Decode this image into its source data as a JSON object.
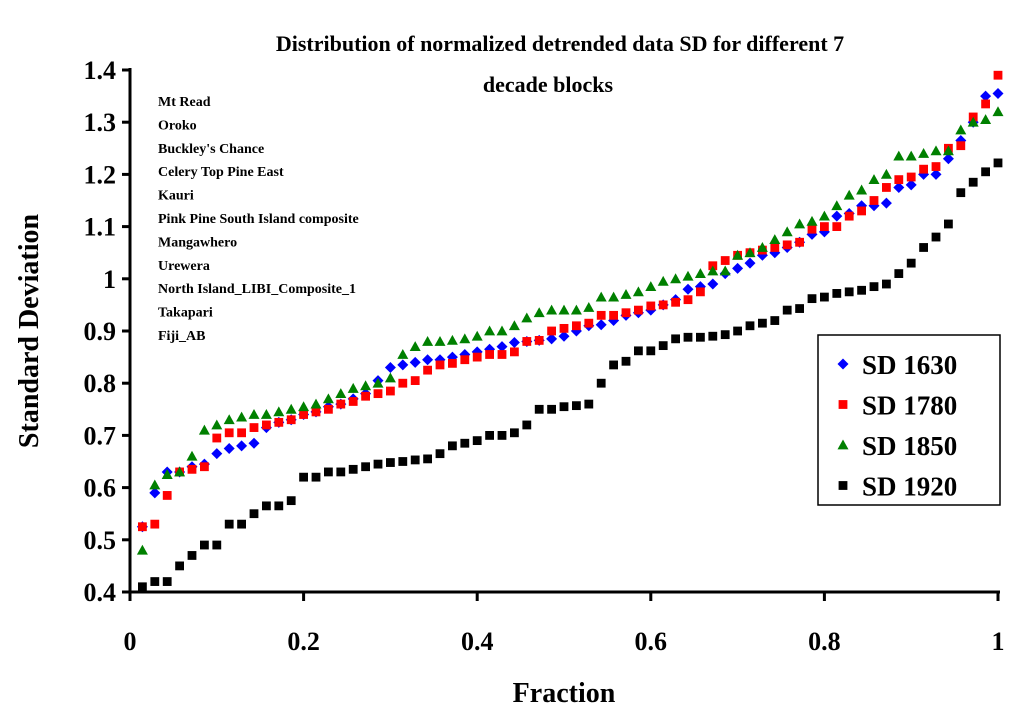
{
  "chart_data": {
    "type": "scatter",
    "title": "Distribution of normalized detrended data SD for different 7 decade blocks",
    "title_lines": [
      "Distribution of normalized detrended data SD for different 7",
      "decade blocks"
    ],
    "xlabel": "Fraction",
    "ylabel": "Standard Deviation",
    "xlim": [
      0,
      1
    ],
    "ylim": [
      0.4,
      1.4
    ],
    "xticks": [
      "0",
      "0.2",
      "0.4",
      "0.6",
      "0.8",
      "1"
    ],
    "yticks": [
      "0.4",
      "0.5",
      "0.6",
      "0.7",
      "0.8",
      "0.9",
      "1",
      "1.1",
      "1.2",
      "1.3",
      "1.4"
    ],
    "grid": false,
    "legend_position": "right",
    "annotations": [
      "Mt Read",
      "Oroko",
      "Buckley's Chance",
      "Celery Top Pine East",
      "Kauri",
      "Pink Pine South Island composite",
      "Mangawhero",
      "Urewera",
      "North Island_LIBI_Composite_1",
      "Takapari",
      "Fiji_AB"
    ],
    "series": [
      {
        "name": "SD 1630",
        "marker": "diamond",
        "color": "#0000ff",
        "values": [
          0.525,
          0.59,
          0.63,
          0.63,
          0.64,
          0.645,
          0.665,
          0.675,
          0.68,
          0.685,
          0.715,
          0.725,
          0.73,
          0.74,
          0.745,
          0.755,
          0.76,
          0.77,
          0.78,
          0.805,
          0.83,
          0.835,
          0.84,
          0.845,
          0.845,
          0.85,
          0.855,
          0.86,
          0.865,
          0.87,
          0.878,
          0.88,
          0.882,
          0.885,
          0.89,
          0.9,
          0.91,
          0.912,
          0.92,
          0.93,
          0.935,
          0.94,
          0.95,
          0.96,
          0.98,
          0.985,
          0.99,
          1.01,
          1.02,
          1.03,
          1.045,
          1.05,
          1.06,
          1.07,
          1.085,
          1.09,
          1.12,
          1.125,
          1.14,
          1.14,
          1.145,
          1.175,
          1.18,
          1.2,
          1.2,
          1.23,
          1.265,
          1.3,
          1.35,
          1.355
        ]
      },
      {
        "name": "SD 1780",
        "marker": "square",
        "color": "#ff0000",
        "values": [
          0.525,
          0.53,
          0.585,
          0.63,
          0.635,
          0.64,
          0.695,
          0.705,
          0.705,
          0.715,
          0.72,
          0.725,
          0.73,
          0.74,
          0.745,
          0.75,
          0.76,
          0.765,
          0.775,
          0.78,
          0.785,
          0.8,
          0.805,
          0.825,
          0.835,
          0.838,
          0.845,
          0.85,
          0.855,
          0.855,
          0.86,
          0.88,
          0.882,
          0.9,
          0.905,
          0.91,
          0.915,
          0.93,
          0.93,
          0.935,
          0.94,
          0.948,
          0.95,
          0.955,
          0.96,
          0.975,
          1.025,
          1.035,
          1.045,
          1.05,
          1.055,
          1.06,
          1.065,
          1.07,
          1.095,
          1.1,
          1.1,
          1.12,
          1.13,
          1.15,
          1.175,
          1.19,
          1.195,
          1.21,
          1.215,
          1.25,
          1.255,
          1.31,
          1.335,
          1.39
        ]
      },
      {
        "name": "SD 1850",
        "marker": "triangle",
        "color": "#008000",
        "values": [
          0.48,
          0.605,
          0.625,
          0.63,
          0.66,
          0.71,
          0.72,
          0.73,
          0.735,
          0.74,
          0.74,
          0.745,
          0.75,
          0.755,
          0.76,
          0.77,
          0.78,
          0.79,
          0.795,
          0.8,
          0.81,
          0.855,
          0.87,
          0.88,
          0.88,
          0.882,
          0.885,
          0.89,
          0.9,
          0.9,
          0.91,
          0.925,
          0.935,
          0.94,
          0.94,
          0.94,
          0.945,
          0.965,
          0.965,
          0.97,
          0.975,
          0.985,
          0.995,
          1.0,
          1.005,
          1.01,
          1.015,
          1.015,
          1.045,
          1.05,
          1.06,
          1.075,
          1.09,
          1.105,
          1.11,
          1.12,
          1.14,
          1.16,
          1.17,
          1.19,
          1.2,
          1.235,
          1.235,
          1.24,
          1.245,
          1.245,
          1.285,
          1.3,
          1.305,
          1.32
        ]
      },
      {
        "name": "SD 1920",
        "marker": "square",
        "color": "#000000",
        "values": [
          0.41,
          0.42,
          0.42,
          0.45,
          0.47,
          0.49,
          0.49,
          0.53,
          0.53,
          0.55,
          0.565,
          0.565,
          0.575,
          0.62,
          0.62,
          0.63,
          0.63,
          0.635,
          0.64,
          0.645,
          0.648,
          0.65,
          0.653,
          0.655,
          0.665,
          0.68,
          0.685,
          0.69,
          0.7,
          0.7,
          0.705,
          0.72,
          0.75,
          0.75,
          0.755,
          0.757,
          0.76,
          0.8,
          0.835,
          0.842,
          0.862,
          0.862,
          0.872,
          0.885,
          0.888,
          0.888,
          0.89,
          0.893,
          0.9,
          0.91,
          0.915,
          0.92,
          0.94,
          0.943,
          0.962,
          0.965,
          0.972,
          0.975,
          0.978,
          0.985,
          0.99,
          1.01,
          1.03,
          1.06,
          1.08,
          1.105,
          1.165,
          1.185,
          1.205,
          1.222
        ]
      }
    ]
  }
}
